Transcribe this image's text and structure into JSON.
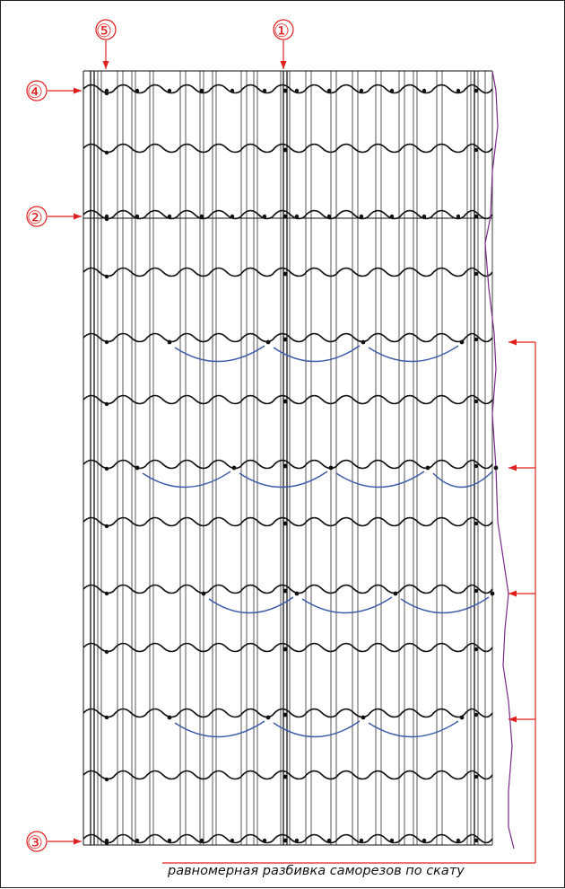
{
  "markers": [
    {
      "id": "marker-1",
      "label": "①"
    },
    {
      "id": "marker-2",
      "label": "②"
    },
    {
      "id": "marker-3",
      "label": "③"
    },
    {
      "id": "marker-4",
      "label": "④"
    },
    {
      "id": "marker-5",
      "label": "⑤"
    }
  ],
  "caption": "равномерная разбивка саморезов по скату",
  "colors": {
    "annotation": "#e02020",
    "sheet_lines": "#111111",
    "screw_arcs": "#3a5aa8",
    "edge_line": "#7a2a8a"
  }
}
